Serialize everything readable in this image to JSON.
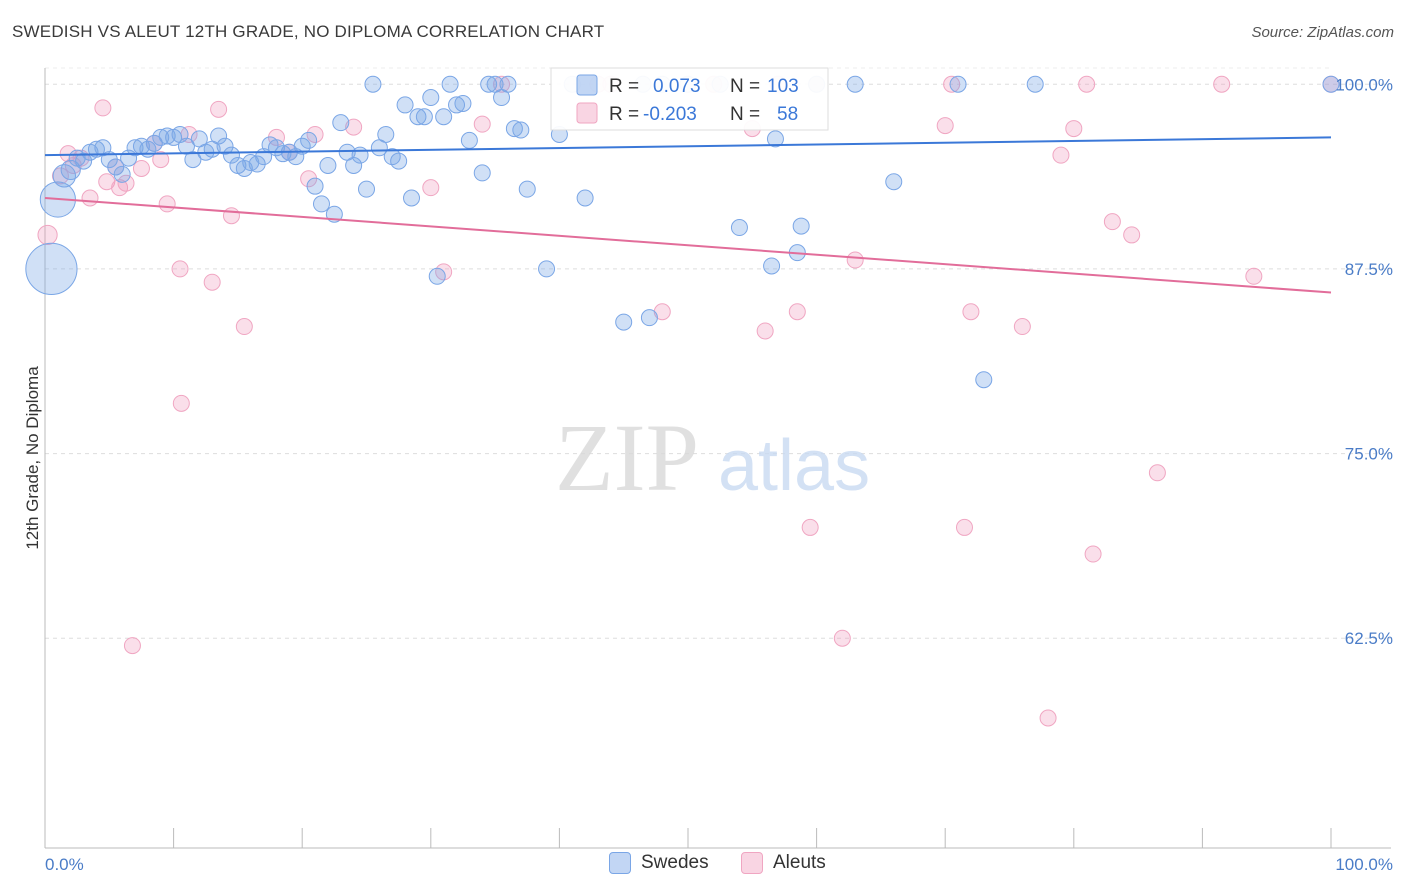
{
  "title": "SWEDISH VS ALEUT 12TH GRADE, NO DIPLOMA CORRELATION CHART",
  "source": "Source: ZipAtlas.com",
  "watermark": {
    "zip": "ZIP",
    "atlas": "atlas"
  },
  "colors": {
    "blue": "#3b78d8",
    "blue_fill": "rgba(120,165,230,0.35)",
    "blue_stroke": "#7aa6e6",
    "pink": "#e26d9a",
    "pink_fill": "rgba(240,150,185,0.30)",
    "pink_stroke": "#f0a6c2",
    "tick_label": "#4a7cc7",
    "grid": "#dddddd"
  },
  "legend": {
    "r_label": "R =",
    "n_label": "N =",
    "rows": [
      {
        "series": "Swedes",
        "r": "0.073",
        "n": "103"
      },
      {
        "series": "Aleuts",
        "r": "-0.203",
        "n": "58"
      }
    ]
  },
  "bottom_legend": [
    {
      "label": "Swedes"
    },
    {
      "label": "Aleuts"
    }
  ],
  "chart_data": {
    "type": "scatter",
    "title": "SWEDISH VS ALEUT 12TH GRADE, NO DIPLOMA CORRELATION CHART",
    "xlabel": "",
    "ylabel": "12th Grade, No Diploma",
    "x_tick_labels": [
      "0.0%",
      "100.0%"
    ],
    "y_tick_labels": [
      "100.0%",
      "87.5%",
      "75.0%",
      "62.5%"
    ],
    "y_ticks": [
      100.0,
      87.5,
      75.0,
      62.5
    ],
    "xlim": [
      0,
      100
    ],
    "ylim": [
      48.3,
      101.1
    ],
    "grid": true,
    "legend_position": "top-center",
    "series": [
      {
        "name": "Swedes",
        "color": "#3b78d8",
        "trend": {
          "x": [
            0,
            100
          ],
          "y": [
            95.2,
            96.4
          ]
        },
        "points": [
          {
            "x": 1.0,
            "y": 92.2,
            "s": 22
          },
          {
            "x": 0.5,
            "y": 87.5,
            "s": 32
          },
          {
            "x": 1.5,
            "y": 93.8,
            "s": 14
          },
          {
            "x": 2.0,
            "y": 94.2,
            "s": 12
          },
          {
            "x": 2.5,
            "y": 95.0,
            "s": 10
          },
          {
            "x": 3.0,
            "y": 94.8,
            "s": 10
          },
          {
            "x": 3.5,
            "y": 95.4,
            "s": 10
          },
          {
            "x": 4.0,
            "y": 95.6,
            "s": 10
          },
          {
            "x": 4.5,
            "y": 95.7,
            "s": 10
          },
          {
            "x": 5.0,
            "y": 94.9,
            "s": 10
          },
          {
            "x": 5.5,
            "y": 94.4,
            "s": 10
          },
          {
            "x": 6.0,
            "y": 93.9,
            "s": 10
          },
          {
            "x": 6.5,
            "y": 95.0,
            "s": 10
          },
          {
            "x": 7.0,
            "y": 95.7,
            "s": 10
          },
          {
            "x": 7.5,
            "y": 95.8,
            "s": 10
          },
          {
            "x": 8.0,
            "y": 95.6,
            "s": 10
          },
          {
            "x": 8.5,
            "y": 96.0,
            "s": 10
          },
          {
            "x": 9.0,
            "y": 96.4,
            "s": 10
          },
          {
            "x": 9.5,
            "y": 96.5,
            "s": 10
          },
          {
            "x": 10.0,
            "y": 96.4,
            "s": 10
          },
          {
            "x": 10.5,
            "y": 96.6,
            "s": 10
          },
          {
            "x": 11.0,
            "y": 95.8,
            "s": 10
          },
          {
            "x": 11.5,
            "y": 94.9,
            "s": 10
          },
          {
            "x": 12.0,
            "y": 96.3,
            "s": 10
          },
          {
            "x": 12.5,
            "y": 95.4,
            "s": 10
          },
          {
            "x": 13.0,
            "y": 95.6,
            "s": 10
          },
          {
            "x": 13.5,
            "y": 96.5,
            "s": 10
          },
          {
            "x": 14.0,
            "y": 95.8,
            "s": 10
          },
          {
            "x": 14.5,
            "y": 95.2,
            "s": 10
          },
          {
            "x": 15.0,
            "y": 94.5,
            "s": 10
          },
          {
            "x": 15.5,
            "y": 94.3,
            "s": 10
          },
          {
            "x": 16.0,
            "y": 94.7,
            "s": 10
          },
          {
            "x": 16.5,
            "y": 94.6,
            "s": 10
          },
          {
            "x": 17.0,
            "y": 95.1,
            "s": 10
          },
          {
            "x": 17.5,
            "y": 95.9,
            "s": 10
          },
          {
            "x": 18.0,
            "y": 95.7,
            "s": 10
          },
          {
            "x": 18.5,
            "y": 95.3,
            "s": 10
          },
          {
            "x": 19.0,
            "y": 95.4,
            "s": 10
          },
          {
            "x": 19.5,
            "y": 95.1,
            "s": 10
          },
          {
            "x": 20.0,
            "y": 95.8,
            "s": 10
          },
          {
            "x": 20.5,
            "y": 96.2,
            "s": 10
          },
          {
            "x": 21.0,
            "y": 93.1,
            "s": 10
          },
          {
            "x": 21.5,
            "y": 91.9,
            "s": 10
          },
          {
            "x": 22.0,
            "y": 94.5,
            "s": 10
          },
          {
            "x": 22.5,
            "y": 91.2,
            "s": 10
          },
          {
            "x": 23.0,
            "y": 97.4,
            "s": 10
          },
          {
            "x": 23.5,
            "y": 95.4,
            "s": 10
          },
          {
            "x": 24.0,
            "y": 94.5,
            "s": 10
          },
          {
            "x": 24.5,
            "y": 95.2,
            "s": 10
          },
          {
            "x": 25.0,
            "y": 92.9,
            "s": 10
          },
          {
            "x": 25.5,
            "y": 100.0,
            "s": 10
          },
          {
            "x": 26.0,
            "y": 95.7,
            "s": 10
          },
          {
            "x": 26.5,
            "y": 96.6,
            "s": 10
          },
          {
            "x": 27.0,
            "y": 95.1,
            "s": 10
          },
          {
            "x": 27.5,
            "y": 94.8,
            "s": 10
          },
          {
            "x": 28.0,
            "y": 98.6,
            "s": 10
          },
          {
            "x": 28.5,
            "y": 92.3,
            "s": 10
          },
          {
            "x": 29.0,
            "y": 97.8,
            "s": 10
          },
          {
            "x": 29.5,
            "y": 97.8,
            "s": 10
          },
          {
            "x": 30.0,
            "y": 99.1,
            "s": 10
          },
          {
            "x": 30.5,
            "y": 87.0,
            "s": 10
          },
          {
            "x": 31.0,
            "y": 97.8,
            "s": 10
          },
          {
            "x": 31.5,
            "y": 100.0,
            "s": 10
          },
          {
            "x": 32.0,
            "y": 98.6,
            "s": 10
          },
          {
            "x": 32.5,
            "y": 98.7,
            "s": 10
          },
          {
            "x": 33.0,
            "y": 96.2,
            "s": 10
          },
          {
            "x": 34.0,
            "y": 94.0,
            "s": 10
          },
          {
            "x": 34.5,
            "y": 100.0,
            "s": 10
          },
          {
            "x": 35.0,
            "y": 100.0,
            "s": 10
          },
          {
            "x": 35.5,
            "y": 99.1,
            "s": 10
          },
          {
            "x": 36.0,
            "y": 100.0,
            "s": 10
          },
          {
            "x": 36.5,
            "y": 97.0,
            "s": 10
          },
          {
            "x": 37.0,
            "y": 96.9,
            "s": 10
          },
          {
            "x": 37.5,
            "y": 92.9,
            "s": 10
          },
          {
            "x": 39.0,
            "y": 87.5,
            "s": 10
          },
          {
            "x": 40.0,
            "y": 96.6,
            "s": 10
          },
          {
            "x": 41.0,
            "y": 100.0,
            "s": 10
          },
          {
            "x": 42.0,
            "y": 92.3,
            "s": 10
          },
          {
            "x": 45.0,
            "y": 83.9,
            "s": 10
          },
          {
            "x": 46.5,
            "y": 100.0,
            "s": 10
          },
          {
            "x": 47.0,
            "y": 84.2,
            "s": 10
          },
          {
            "x": 48.0,
            "y": 100.0,
            "s": 10
          },
          {
            "x": 50.0,
            "y": 100.0,
            "s": 10
          },
          {
            "x": 52.5,
            "y": 100.0,
            "s": 10
          },
          {
            "x": 54.0,
            "y": 90.3,
            "s": 10
          },
          {
            "x": 56.5,
            "y": 87.7,
            "s": 10
          },
          {
            "x": 56.8,
            "y": 96.3,
            "s": 10
          },
          {
            "x": 58.5,
            "y": 88.6,
            "s": 10
          },
          {
            "x": 58.8,
            "y": 90.4,
            "s": 10
          },
          {
            "x": 60.0,
            "y": 100.0,
            "s": 10
          },
          {
            "x": 63.0,
            "y": 100.0,
            "s": 10
          },
          {
            "x": 66.0,
            "y": 93.4,
            "s": 10
          },
          {
            "x": 71.0,
            "y": 100.0,
            "s": 10
          },
          {
            "x": 73.0,
            "y": 80.0,
            "s": 10
          },
          {
            "x": 77.0,
            "y": 100.0,
            "s": 10
          },
          {
            "x": 100.0,
            "y": 100.0,
            "s": 10
          }
        ]
      },
      {
        "name": "Aleuts",
        "color": "#e26d9a",
        "trend": {
          "x": [
            0,
            100
          ],
          "y": [
            92.3,
            85.9
          ]
        },
        "points": [
          {
            "x": 0.2,
            "y": 89.8,
            "s": 12
          },
          {
            "x": 1.2,
            "y": 93.8,
            "s": 10
          },
          {
            "x": 1.8,
            "y": 95.3,
            "s": 10
          },
          {
            "x": 2.2,
            "y": 94.5,
            "s": 10
          },
          {
            "x": 2.8,
            "y": 95.0,
            "s": 10
          },
          {
            "x": 3.5,
            "y": 92.3,
            "s": 10
          },
          {
            "x": 4.5,
            "y": 98.4,
            "s": 10
          },
          {
            "x": 4.8,
            "y": 93.4,
            "s": 10
          },
          {
            "x": 5.5,
            "y": 94.4,
            "s": 10
          },
          {
            "x": 5.8,
            "y": 93.0,
            "s": 10
          },
          {
            "x": 6.3,
            "y": 93.3,
            "s": 10
          },
          {
            "x": 6.8,
            "y": 62.0,
            "s": 10
          },
          {
            "x": 7.5,
            "y": 94.3,
            "s": 10
          },
          {
            "x": 8.5,
            "y": 96.0,
            "s": 10
          },
          {
            "x": 9.0,
            "y": 94.9,
            "s": 10
          },
          {
            "x": 9.5,
            "y": 91.9,
            "s": 10
          },
          {
            "x": 10.5,
            "y": 87.5,
            "s": 10
          },
          {
            "x": 10.6,
            "y": 78.4,
            "s": 10
          },
          {
            "x": 11.2,
            "y": 96.6,
            "s": 10
          },
          {
            "x": 13.0,
            "y": 86.6,
            "s": 10
          },
          {
            "x": 13.5,
            "y": 98.3,
            "s": 10
          },
          {
            "x": 14.5,
            "y": 91.1,
            "s": 10
          },
          {
            "x": 15.5,
            "y": 83.6,
            "s": 10
          },
          {
            "x": 18.0,
            "y": 96.4,
            "s": 10
          },
          {
            "x": 19.0,
            "y": 95.4,
            "s": 10
          },
          {
            "x": 20.5,
            "y": 93.6,
            "s": 10
          },
          {
            "x": 21.0,
            "y": 96.6,
            "s": 10
          },
          {
            "x": 24.0,
            "y": 97.1,
            "s": 10
          },
          {
            "x": 30.0,
            "y": 93.0,
            "s": 10
          },
          {
            "x": 31.0,
            "y": 87.3,
            "s": 10
          },
          {
            "x": 34.0,
            "y": 97.3,
            "s": 10
          },
          {
            "x": 35.5,
            "y": 100.0,
            "s": 10
          },
          {
            "x": 43.0,
            "y": 100.0,
            "s": 10
          },
          {
            "x": 44.0,
            "y": 100.0,
            "s": 10
          },
          {
            "x": 48.0,
            "y": 84.6,
            "s": 10
          },
          {
            "x": 52.0,
            "y": 100.0,
            "s": 10
          },
          {
            "x": 55.0,
            "y": 97.0,
            "s": 10
          },
          {
            "x": 56.0,
            "y": 83.3,
            "s": 10
          },
          {
            "x": 57.0,
            "y": 100.0,
            "s": 10
          },
          {
            "x": 58.5,
            "y": 84.6,
            "s": 10
          },
          {
            "x": 59.5,
            "y": 70.0,
            "s": 10
          },
          {
            "x": 60.0,
            "y": 100.0,
            "s": 10
          },
          {
            "x": 62.0,
            "y": 62.5,
            "s": 10
          },
          {
            "x": 63.0,
            "y": 88.1,
            "s": 10
          },
          {
            "x": 70.0,
            "y": 97.2,
            "s": 10
          },
          {
            "x": 70.5,
            "y": 100.0,
            "s": 10
          },
          {
            "x": 71.5,
            "y": 70.0,
            "s": 10
          },
          {
            "x": 72.0,
            "y": 84.6,
            "s": 10
          },
          {
            "x": 76.0,
            "y": 83.6,
            "s": 10
          },
          {
            "x": 78.0,
            "y": 57.1,
            "s": 10
          },
          {
            "x": 79.0,
            "y": 95.2,
            "s": 10
          },
          {
            "x": 80.0,
            "y": 97.0,
            "s": 10
          },
          {
            "x": 81.5,
            "y": 68.2,
            "s": 10
          },
          {
            "x": 81.0,
            "y": 100.0,
            "s": 10
          },
          {
            "x": 83.0,
            "y": 90.7,
            "s": 10
          },
          {
            "x": 84.5,
            "y": 89.8,
            "s": 10
          },
          {
            "x": 86.5,
            "y": 73.7,
            "s": 10
          },
          {
            "x": 91.5,
            "y": 100.0,
            "s": 10
          },
          {
            "x": 94.0,
            "y": 87.0,
            "s": 10
          },
          {
            "x": 100.0,
            "y": 100.0,
            "s": 10
          }
        ]
      }
    ]
  }
}
